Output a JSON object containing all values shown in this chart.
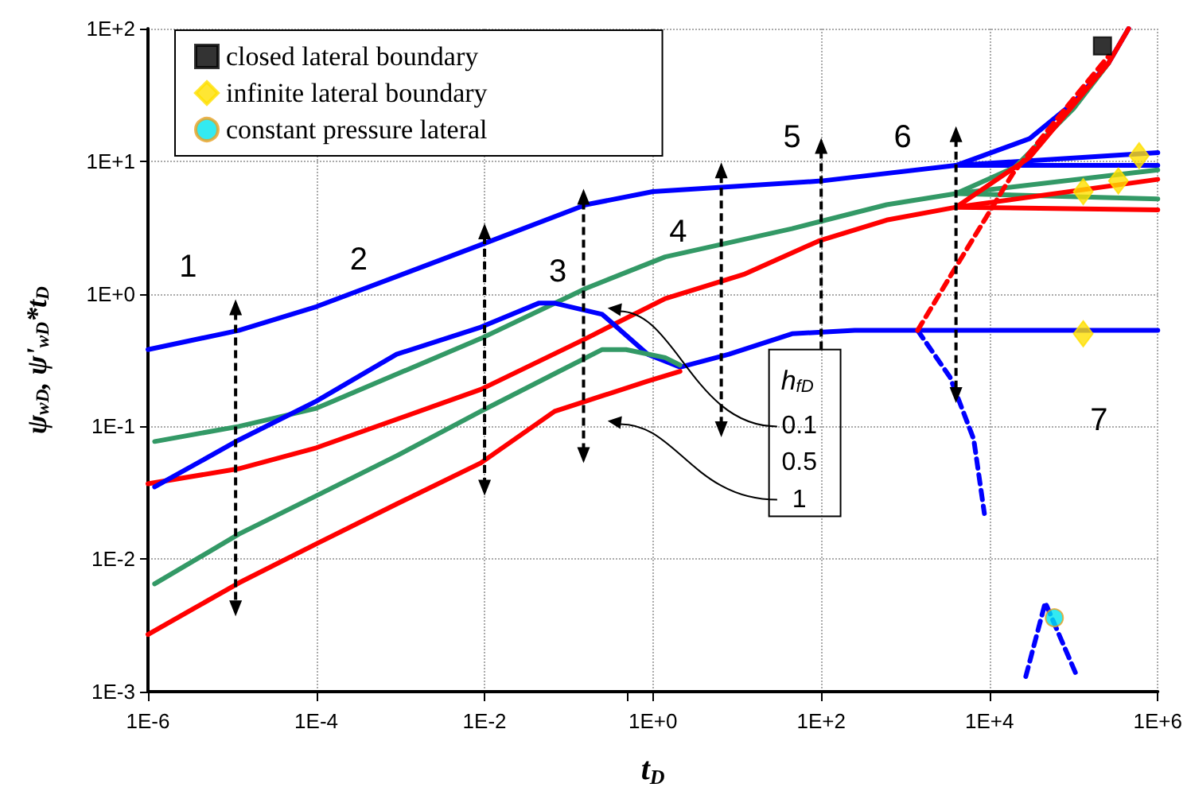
{
  "chart_data": {
    "type": "line",
    "xlabel": "t$_{D}$",
    "ylabel": "ψ$_{wD}$, ψ'$_{wD}$*t$_{D}$",
    "log": "xy",
    "grid": true,
    "legend": "top left",
    "marker": "none",
    "line_style": "solid",
    "xlim": [
      1e-06,
      1000000.0
    ],
    "xticks": [
      {
        "value": 1e-06,
        "label": "1E-6"
      },
      {
        "value": 0.0001,
        "label": "1E-4"
      },
      {
        "value": 0.01,
        "label": "1E-2"
      },
      {
        "value": 1,
        "label": "1E+0"
      },
      {
        "value": 100,
        "label": "1E+2"
      },
      {
        "value": 10000.0,
        "label": "1E+4"
      },
      {
        "value": 1000000.0,
        "label": "1E+6"
      }
    ],
    "ylim": [
      0.001,
      100
    ],
    "yticks": [
      {
        "value": 0.001,
        "label": "1E-3"
      },
      {
        "value": 0.01,
        "label": "1E-2"
      },
      {
        "value": 0.1,
        "label": "1E-1"
      },
      {
        "value": 1,
        "label": "1E+0"
      },
      {
        "value": 10,
        "label": "1E+1"
      },
      {
        "value": 100,
        "label": "1E+2"
      }
    ],
    "series": [
      {
        "color": "#0000ff",
        "x": [
          1e-06,
          1.2e-05,
          0.0001,
          0.01,
          0.16,
          1,
          100,
          4000,
          30000,
          100000,
          260000,
          450000
        ],
        "values": [
          0.38,
          0.53,
          0.8,
          2.4,
          4.7,
          5.9,
          7.1,
          9.3,
          14.8,
          27.7,
          55,
          100
        ]
      },
      {
        "color": "#0000ff",
        "x": [
          4000,
          1000000
        ],
        "values": [
          9.3,
          11.6
        ]
      },
      {
        "color": "#0000ff",
        "x": [
          4000,
          1000000
        ],
        "values": [
          9.3,
          9.3
        ]
      },
      {
        "color": "#339966",
        "x": [
          1.2e-06,
          1.2e-05,
          0.0001,
          0.009,
          0.16,
          1.4,
          45,
          600,
          4000,
          20000,
          100000,
          260000
        ],
        "values": [
          0.077,
          0.1,
          0.137,
          0.46,
          1.1,
          1.9,
          3.1,
          4.7,
          5.7,
          9,
          25,
          55
        ]
      },
      {
        "color": "#339966",
        "x": [
          4000,
          1000000
        ],
        "values": [
          5.7,
          8.6
        ]
      },
      {
        "color": "#339966",
        "x": [
          4000,
          1000000
        ],
        "values": [
          5.7,
          5.2
        ]
      },
      {
        "color": "#ff0000",
        "x": [
          1e-06,
          1.2e-05,
          0.0001,
          0.009,
          0.16,
          1.4,
          12,
          93,
          600,
          4000,
          30000,
          260000,
          450000
        ],
        "values": [
          0.037,
          0.048,
          0.069,
          0.19,
          0.46,
          0.92,
          1.4,
          2.5,
          3.6,
          4.5,
          10.7,
          55,
          100
        ]
      },
      {
        "color": "#ff0000",
        "x": [
          4000,
          1000000
        ],
        "values": [
          4.5,
          7.3
        ]
      },
      {
        "color": "#ff0000",
        "x": [
          4000,
          1000000
        ],
        "values": [
          4.5,
          4.3
        ]
      },
      {
        "color": "#0000ff",
        "x": [
          1.2e-06,
          1.2e-05,
          0.0001,
          0.0009,
          0.009,
          0.044,
          0.068,
          0.25,
          0.87,
          2.1,
          8,
          45,
          250,
          1400,
          1000000
        ],
        "values": [
          0.035,
          0.079,
          0.155,
          0.35,
          0.56,
          0.85,
          0.85,
          0.7,
          0.35,
          0.28,
          0.35,
          0.5,
          0.53,
          0.53,
          0.53
        ]
      },
      {
        "color": "#0000ff",
        "line_style": "dashed",
        "x": [
          1400,
          3400,
          6500,
          8700,
          null,
          27000,
          46000,
          110000
        ],
        "values": [
          0.53,
          0.235,
          0.08,
          0.022,
          null,
          0.0013,
          0.0047,
          0.0013
        ]
      },
      {
        "color": "#ff0000",
        "line_style": "dashed",
        "x": [
          1400,
          4000,
          19000,
          110000,
          260000
        ],
        "values": [
          0.53,
          1.6,
          8.1,
          32,
          62
        ]
      },
      {
        "color": "#339966",
        "x": [
          1.2e-06,
          1.2e-05,
          0.0001,
          0.0009,
          0.009,
          0.068,
          0.25,
          0.48,
          1.4,
          2.1
        ],
        "values": [
          0.0065,
          0.0154,
          0.03,
          0.06,
          0.13,
          0.25,
          0.38,
          0.38,
          0.33,
          0.29
        ]
      },
      {
        "color": "#ff0000",
        "x": [
          1e-06,
          1.2e-05,
          0.0001,
          0.0009,
          0.009,
          0.068,
          0.25,
          0.87,
          2.1
        ],
        "values": [
          0.0027,
          0.0066,
          0.013,
          0.026,
          0.053,
          0.13,
          0.17,
          0.22,
          0.26
        ]
      },
      {
        "type": "scatter",
        "name": "closed lateral boundary",
        "marker": "square",
        "color": "#000000",
        "x": [
          220000
        ],
        "values": [
          74
        ]
      },
      {
        "type": "scatter",
        "name": "infinite lateral boundary",
        "marker": "diamond",
        "color": "#ffe000",
        "x": [
          600000,
          130000,
          340000,
          130000
        ],
        "values": [
          11,
          5.9,
          7.1,
          0.5
        ]
      },
      {
        "type": "scatter",
        "name": "constant pressure lateral",
        "marker": "circle",
        "color": "#00e5ee",
        "x": [
          59000
        ],
        "values": [
          0.0036
        ]
      }
    ],
    "annotations": [
      "1",
      "2",
      "3",
      "4",
      "5",
      "6",
      "7",
      "h$_{fD}$",
      "0.1",
      "0.5",
      "1"
    ]
  }
}
